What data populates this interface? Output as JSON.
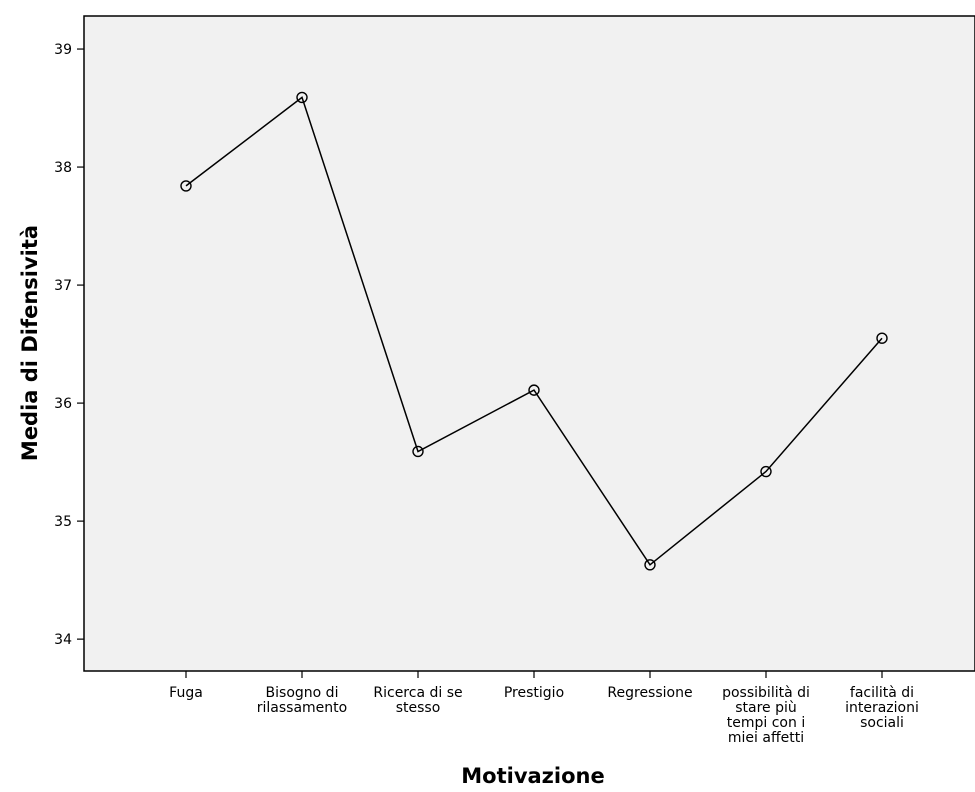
{
  "chart_data": {
    "type": "line",
    "title": "",
    "xlabel": "Motivazione",
    "ylabel": "Media di Difensività",
    "categories": [
      "Fuga",
      "Bisogno di rilassamento",
      "Ricerca di se stesso",
      "Prestigio",
      "Regressione",
      "possibilità di stare più tempi con i miei affetti",
      "facilità di interazioni sociali"
    ],
    "category_label_lines": [
      [
        "Fuga"
      ],
      [
        "Bisogno di",
        "rilassamento"
      ],
      [
        "Ricerca di se",
        "stesso"
      ],
      [
        "Prestigio"
      ],
      [
        "Regressione"
      ],
      [
        "possibilità di",
        "stare più",
        "tempi con i",
        "miei affetti"
      ],
      [
        "facilità di",
        "interazioni",
        "sociali"
      ]
    ],
    "series": [
      {
        "values": [
          37.84,
          38.59,
          35.59,
          36.11,
          34.63,
          35.42,
          36.55
        ],
        "color": "#000000",
        "marker": "open-circle"
      }
    ],
    "ylim": [
      33.73,
      39.28
    ],
    "yticks": [
      34,
      35,
      36,
      37,
      38,
      39
    ],
    "grid": false,
    "plot_background": "#f1f1f1",
    "legend": "none"
  }
}
